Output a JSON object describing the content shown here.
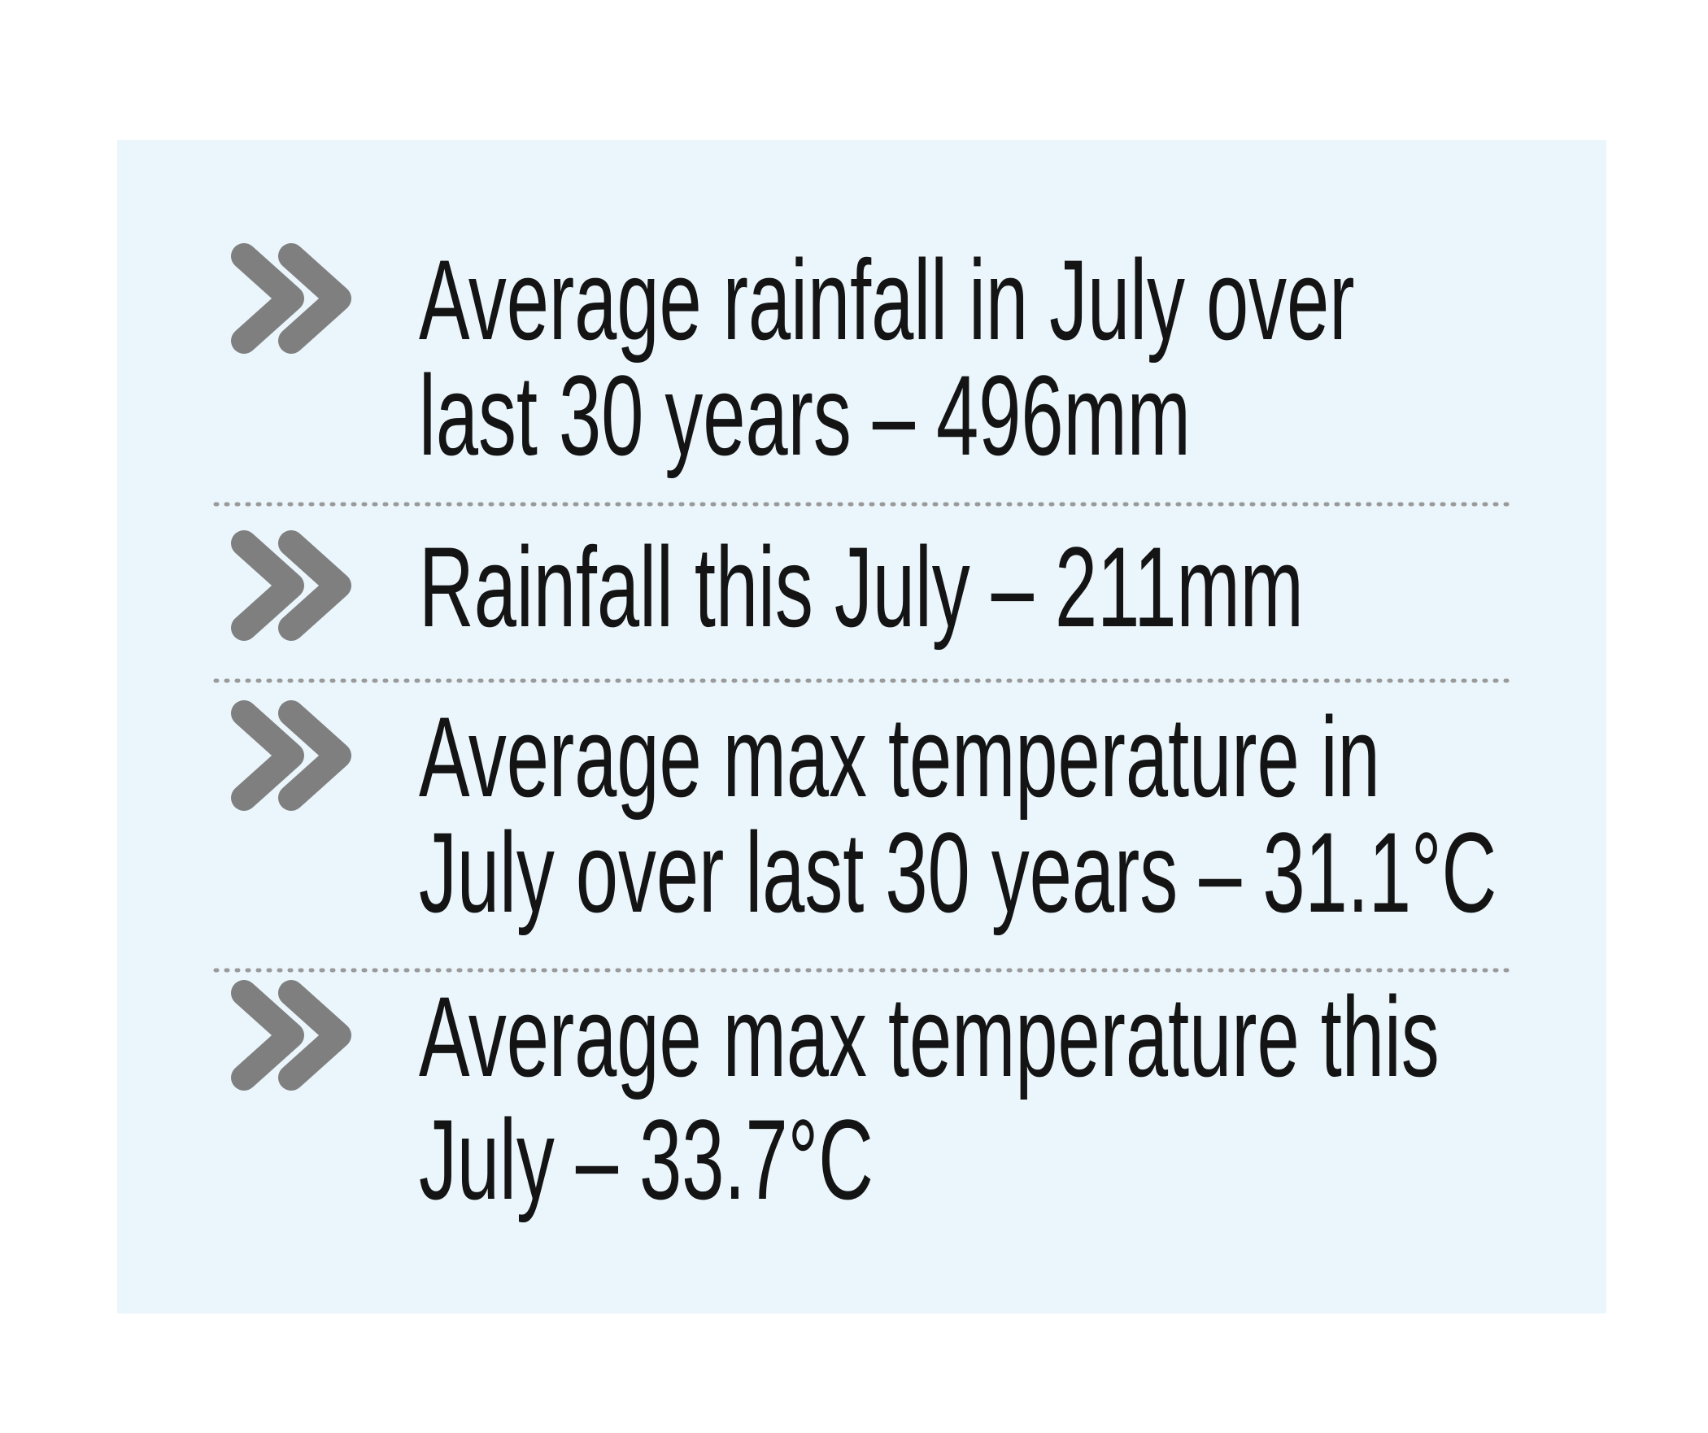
{
  "items": [
    {
      "lines": [
        "Average rainfall in July over",
        "last 30 years – 496mm"
      ]
    },
    {
      "lines": [
        "Rainfall this July – 211mm"
      ]
    },
    {
      "lines": [
        "Average max temperature in",
        "July over last 30 years – 31.1°C"
      ]
    },
    {
      "lines": [
        "Average max temperature this",
        "July – 33.7°C"
      ]
    }
  ]
}
